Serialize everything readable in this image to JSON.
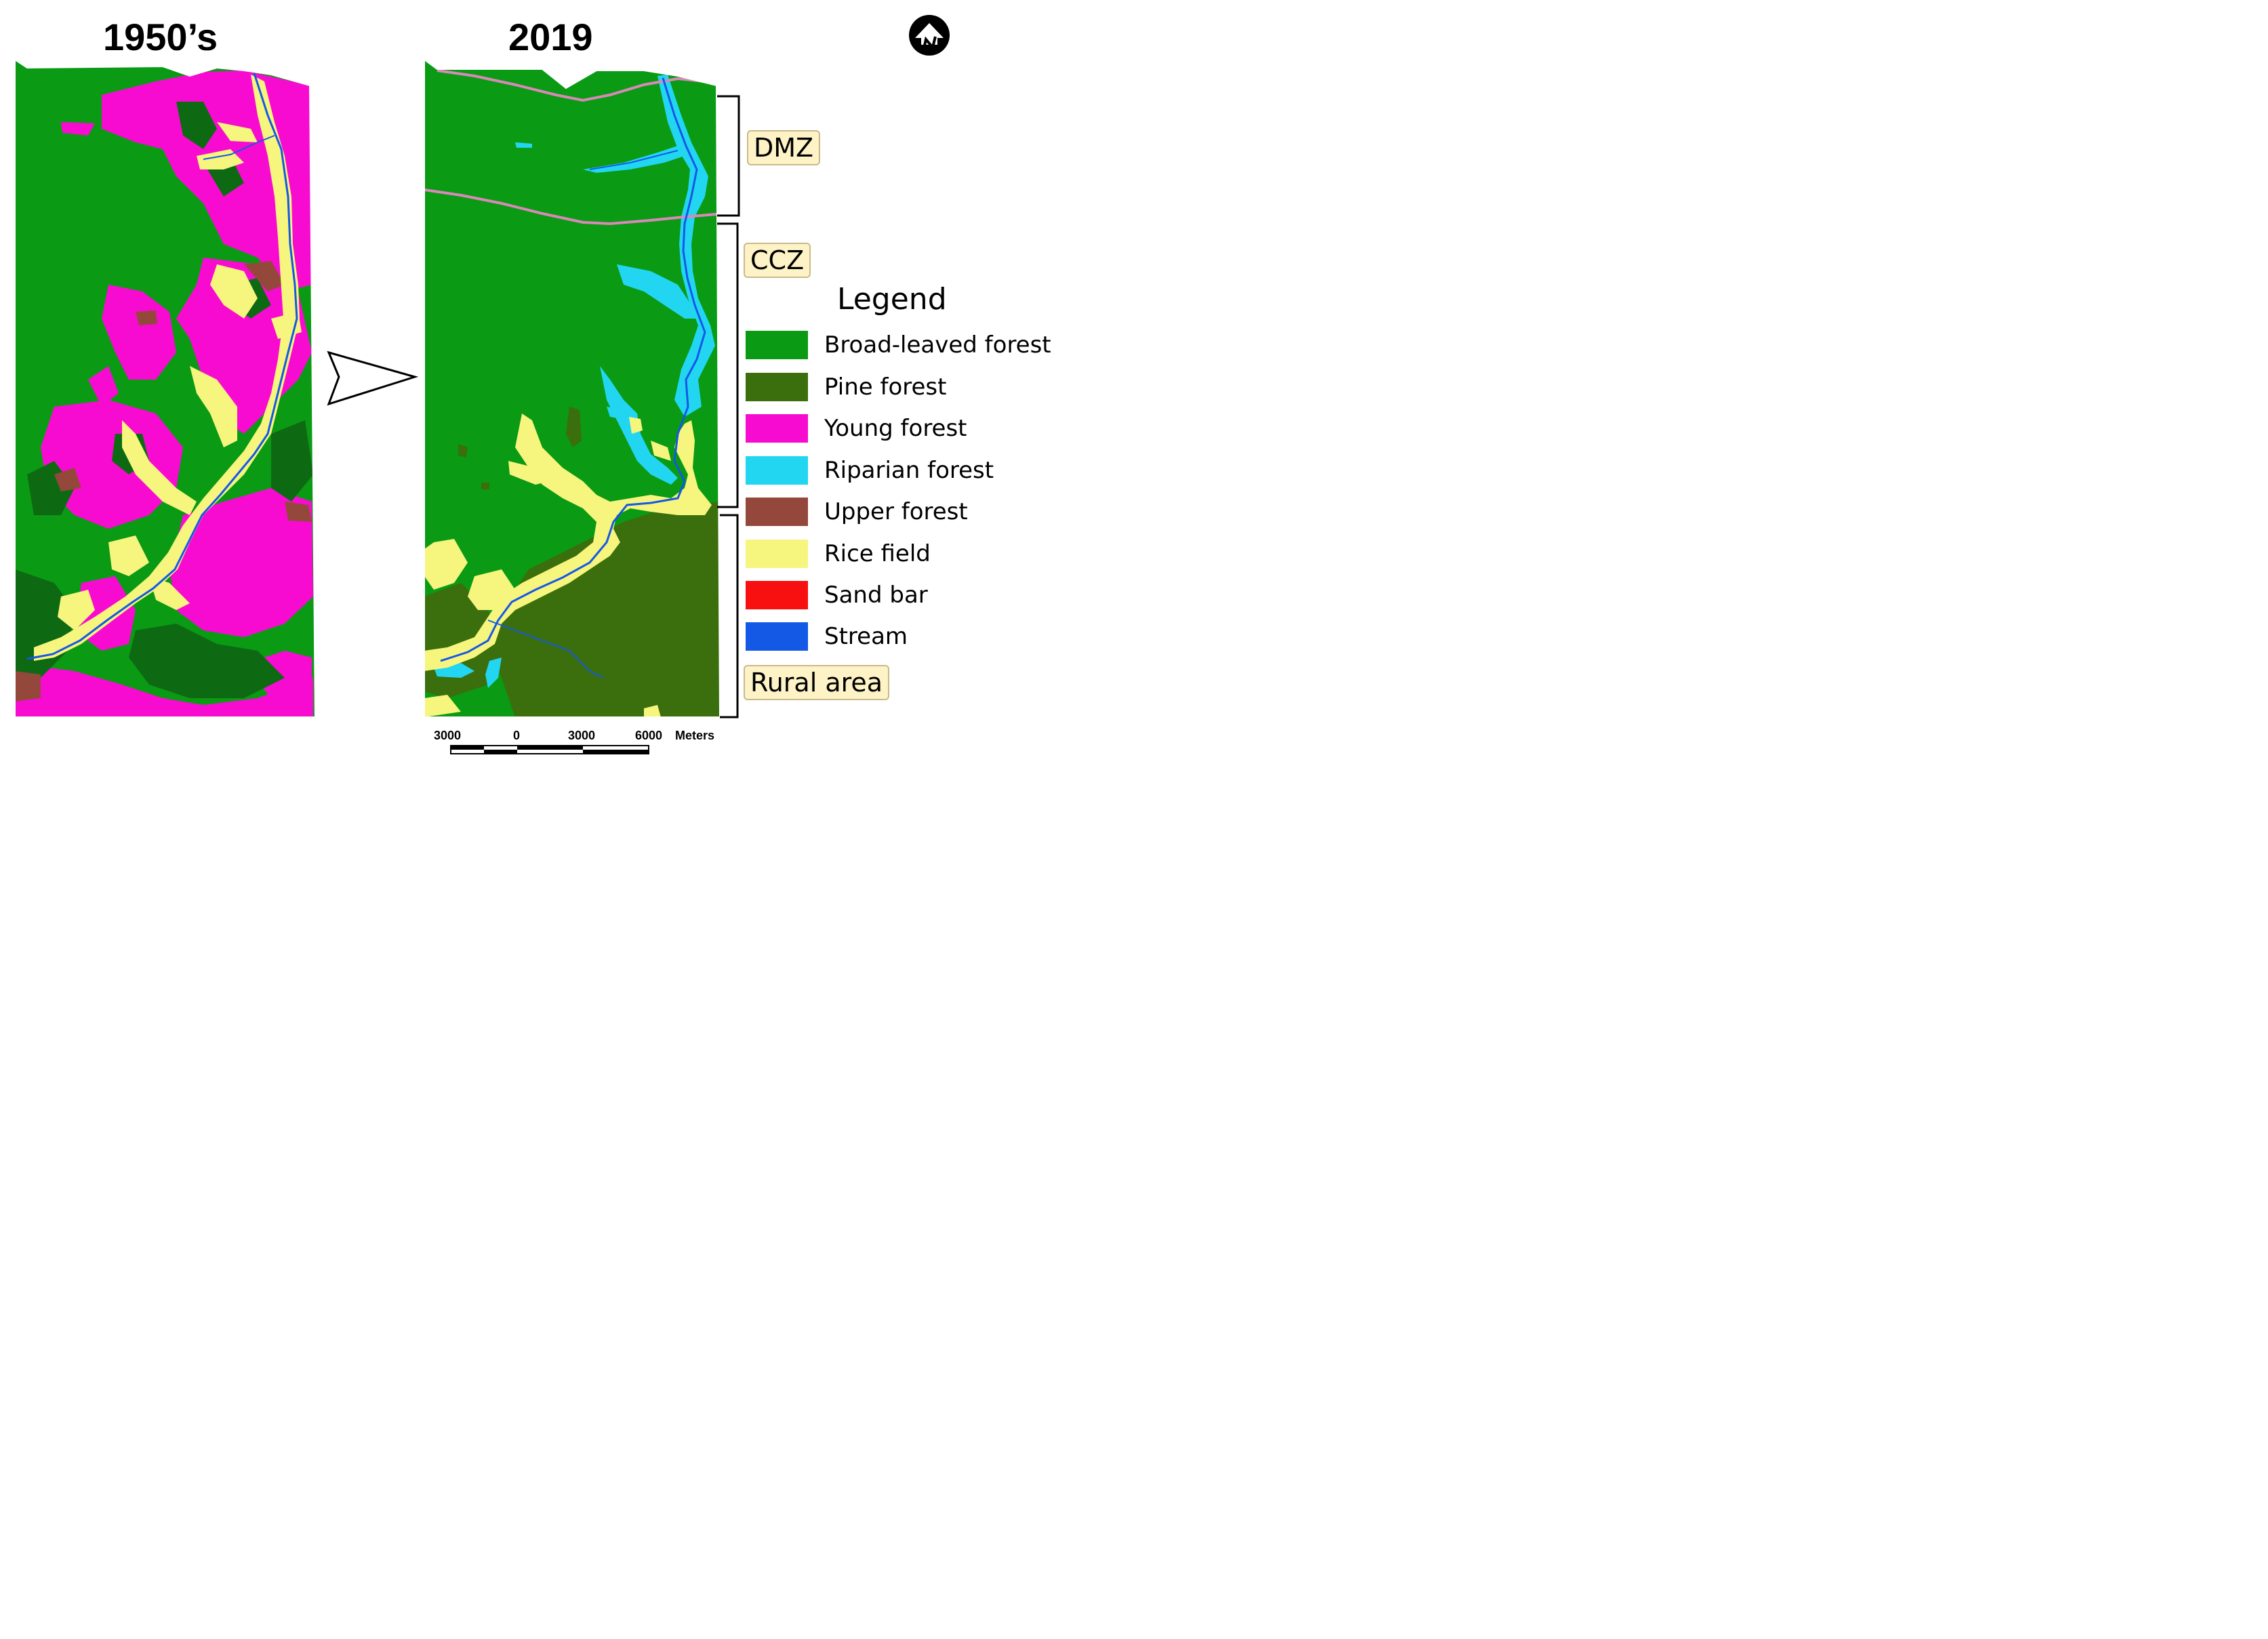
{
  "panels": {
    "left_title": "1950’s",
    "right_title": "2019"
  },
  "north_arrow": {
    "icon": "north-arrow-icon",
    "letter": "N"
  },
  "zones": {
    "dmz": "DMZ",
    "ccz": "CCZ",
    "rural": "Rural area"
  },
  "legend": {
    "title": "Legend",
    "items": [
      {
        "label": "Broad-leaved forest",
        "color": "#0a9a14"
      },
      {
        "label": "Pine forest",
        "color": "#3b6e0c"
      },
      {
        "label": "Young forest",
        "color": "#f80bd0"
      },
      {
        "label": "Riparian forest",
        "color": "#22d6f2"
      },
      {
        "label": "Upper forest",
        "color": "#94483c"
      },
      {
        "label": "Rice field",
        "color": "#f6f57e"
      },
      {
        "label": "Sand bar",
        "color": "#f81010"
      },
      {
        "label": "Stream",
        "color": "#1458e6"
      }
    ]
  },
  "scale_bar": {
    "ticks": [
      "3000",
      "0",
      "3000",
      "6000"
    ],
    "unit": "Meters"
  },
  "colors": {
    "broadleaf": "#0a9a14",
    "pine": "#3b6e0c",
    "pine_dark": "#0e6a12",
    "young": "#f80bd0",
    "riparian": "#22d6f2",
    "upper": "#94483c",
    "rice": "#f6f57e",
    "stream": "#1458e6",
    "road": "#d889b8"
  }
}
